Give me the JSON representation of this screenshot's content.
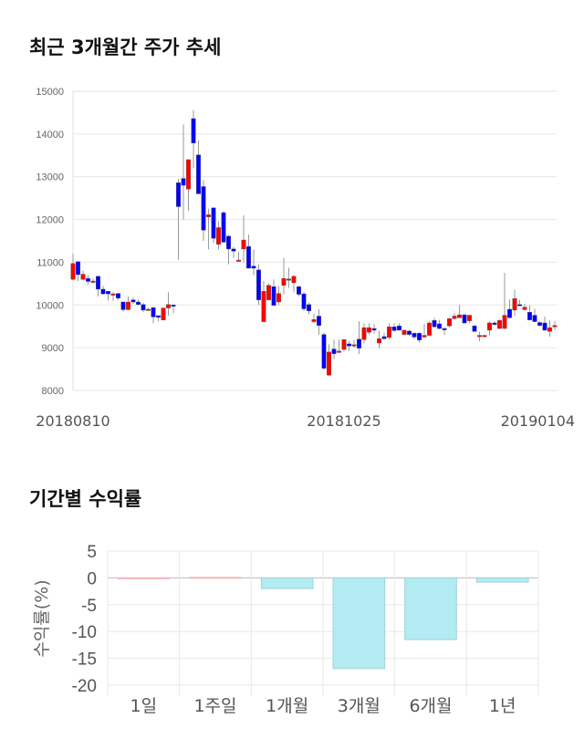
{
  "price_section": {
    "title": "최근 3개월간 주가 추세"
  },
  "returns_section": {
    "title": "기간별 수익률"
  },
  "chart_data": [
    {
      "type": "candlestick",
      "title": "",
      "ylim": [
        8000,
        15000
      ],
      "y_ticks": [
        8000,
        9000,
        10000,
        11000,
        12000,
        13000,
        14000,
        15000
      ],
      "x_tick_labels": [
        "20180810",
        "20181025",
        "20190104"
      ],
      "x_tick_index": [
        0,
        54,
        96
      ],
      "grid": true,
      "colors": {
        "up": "#ff0000",
        "down": "#0000ff",
        "wick": "#999999"
      },
      "ohlc": [
        [
          10600,
          11200,
          10580,
          10970
        ],
        [
          11015,
          11020,
          10560,
          10710
        ],
        [
          10600,
          10800,
          10580,
          10720
        ],
        [
          10620,
          10700,
          10480,
          10550
        ],
        [
          10560,
          10620,
          10500,
          10560
        ],
        [
          10670,
          10690,
          10200,
          10370
        ],
        [
          10370,
          10450,
          10240,
          10260
        ],
        [
          10320,
          10330,
          10100,
          10260
        ],
        [
          10260,
          10300,
          10100,
          10260
        ],
        [
          10270,
          10280,
          10120,
          10160
        ],
        [
          10070,
          10080,
          9840,
          9890
        ],
        [
          9890,
          10200,
          9880,
          10070
        ],
        [
          10120,
          10170,
          10030,
          10070
        ],
        [
          10070,
          10130,
          9990,
          10010
        ],
        [
          10010,
          10050,
          9830,
          9880
        ],
        [
          9900,
          9940,
          9870,
          9900
        ],
        [
          9940,
          9950,
          9570,
          9720
        ],
        [
          9750,
          9760,
          9620,
          9710
        ],
        [
          9650,
          9930,
          9640,
          9930
        ],
        [
          9930,
          10300,
          9750,
          10010
        ],
        [
          10000,
          10010,
          9810,
          9990
        ],
        [
          12860,
          12950,
          11060,
          12300
        ],
        [
          12960,
          14220,
          12000,
          12800
        ],
        [
          12710,
          13400,
          12200,
          13400
        ],
        [
          14360,
          14560,
          13200,
          13790
        ],
        [
          13510,
          13850,
          12600,
          12600
        ],
        [
          12770,
          12920,
          11500,
          11750
        ],
        [
          12060,
          12250,
          11300,
          12110
        ],
        [
          12270,
          12290,
          11450,
          11560
        ],
        [
          11420,
          11960,
          11300,
          11810
        ],
        [
          12160,
          12200,
          11450,
          11470
        ],
        [
          11610,
          11640,
          10950,
          11310
        ],
        [
          11310,
          11360,
          11100,
          11260
        ],
        [
          11050,
          11250,
          11040,
          11050
        ],
        [
          11310,
          12100,
          11000,
          11520
        ],
        [
          11370,
          11650,
          10860,
          10860
        ],
        [
          10910,
          11300,
          10700,
          10860
        ],
        [
          10820,
          10950,
          10000,
          10120
        ],
        [
          9610,
          10560,
          9600,
          10320
        ],
        [
          10120,
          10500,
          10100,
          10460
        ],
        [
          10430,
          10600,
          9990,
          9990
        ],
        [
          10070,
          10440,
          10000,
          10270
        ],
        [
          10460,
          11100,
          10250,
          10620
        ],
        [
          10610,
          10870,
          10400,
          10610
        ],
        [
          10520,
          10700,
          10300,
          10670
        ],
        [
          10430,
          10450,
          10200,
          10250
        ],
        [
          10260,
          10300,
          9860,
          9910
        ],
        [
          10010,
          10060,
          9780,
          9860
        ],
        [
          9610,
          9800,
          9580,
          9660
        ],
        [
          9740,
          9900,
          9300,
          9520
        ],
        [
          9310,
          9350,
          8480,
          8520
        ],
        [
          8360,
          9080,
          8340,
          8900
        ],
        [
          8970,
          9190,
          8730,
          8860
        ],
        [
          8920,
          9190,
          8880,
          8920
        ],
        [
          8960,
          9200,
          8910,
          9190
        ],
        [
          9090,
          9160,
          8920,
          9040
        ],
        [
          9040,
          9180,
          9000,
          9070
        ],
        [
          9200,
          9620,
          8850,
          8990
        ],
        [
          9190,
          9570,
          9100,
          9470
        ],
        [
          9360,
          9570,
          9300,
          9470
        ],
        [
          9450,
          9550,
          9330,
          9410
        ],
        [
          9110,
          9400,
          8990,
          9210
        ],
        [
          9260,
          9350,
          9180,
          9210
        ],
        [
          9240,
          9570,
          9200,
          9490
        ],
        [
          9490,
          9570,
          9380,
          9400
        ],
        [
          9510,
          9570,
          9400,
          9410
        ],
        [
          9310,
          9420,
          9290,
          9410
        ],
        [
          9390,
          9420,
          9280,
          9310
        ],
        [
          9340,
          9360,
          9200,
          9250
        ],
        [
          9340,
          9360,
          9120,
          9180
        ],
        [
          9250,
          9560,
          9230,
          9290
        ],
        [
          9290,
          9620,
          9270,
          9580
        ],
        [
          9640,
          9700,
          9470,
          9490
        ],
        [
          9560,
          9650,
          9430,
          9450
        ],
        [
          9450,
          9480,
          9300,
          9430
        ],
        [
          9510,
          9700,
          9480,
          9680
        ],
        [
          9680,
          9810,
          9660,
          9740
        ],
        [
          9700,
          10000,
          9690,
          9770
        ],
        [
          9770,
          9790,
          9560,
          9580
        ],
        [
          9630,
          9770,
          9580,
          9760
        ],
        [
          9510,
          9540,
          9380,
          9380
        ],
        [
          9290,
          9380,
          9150,
          9290
        ],
        [
          9260,
          9300,
          9240,
          9290
        ],
        [
          9410,
          9620,
          9290,
          9580
        ],
        [
          9580,
          9620,
          9520,
          9540
        ],
        [
          9450,
          9660,
          9440,
          9640
        ],
        [
          9450,
          10750,
          9440,
          9760
        ],
        [
          9900,
          10130,
          9680,
          9700
        ],
        [
          9880,
          10350,
          9750,
          10150
        ],
        [
          10010,
          10120,
          9980,
          9990
        ],
        [
          9890,
          10030,
          9870,
          9950
        ],
        [
          9830,
          9990,
          9640,
          9650
        ],
        [
          9760,
          9910,
          9600,
          9610
        ],
        [
          9590,
          9620,
          9500,
          9520
        ],
        [
          9580,
          9730,
          9400,
          9410
        ],
        [
          9380,
          9640,
          9260,
          9470
        ],
        [
          9520,
          9620,
          9410,
          9520
        ]
      ]
    },
    {
      "type": "bar",
      "title": "",
      "ylabel": "수익률(%)",
      "xlabel": "",
      "ylim": [
        -20,
        5
      ],
      "y_ticks": [
        5,
        0,
        -5,
        -10,
        -15,
        -20
      ],
      "categories": [
        "1일",
        "1주일",
        "1개월",
        "3개월",
        "6개월",
        "1년"
      ],
      "values": [
        0,
        0.1,
        -2.0,
        -16.9,
        -11.5,
        -0.8
      ],
      "grid": true,
      "colors": {
        "negative": "#b2ebf2",
        "positive": "#ffcdd2"
      }
    }
  ]
}
